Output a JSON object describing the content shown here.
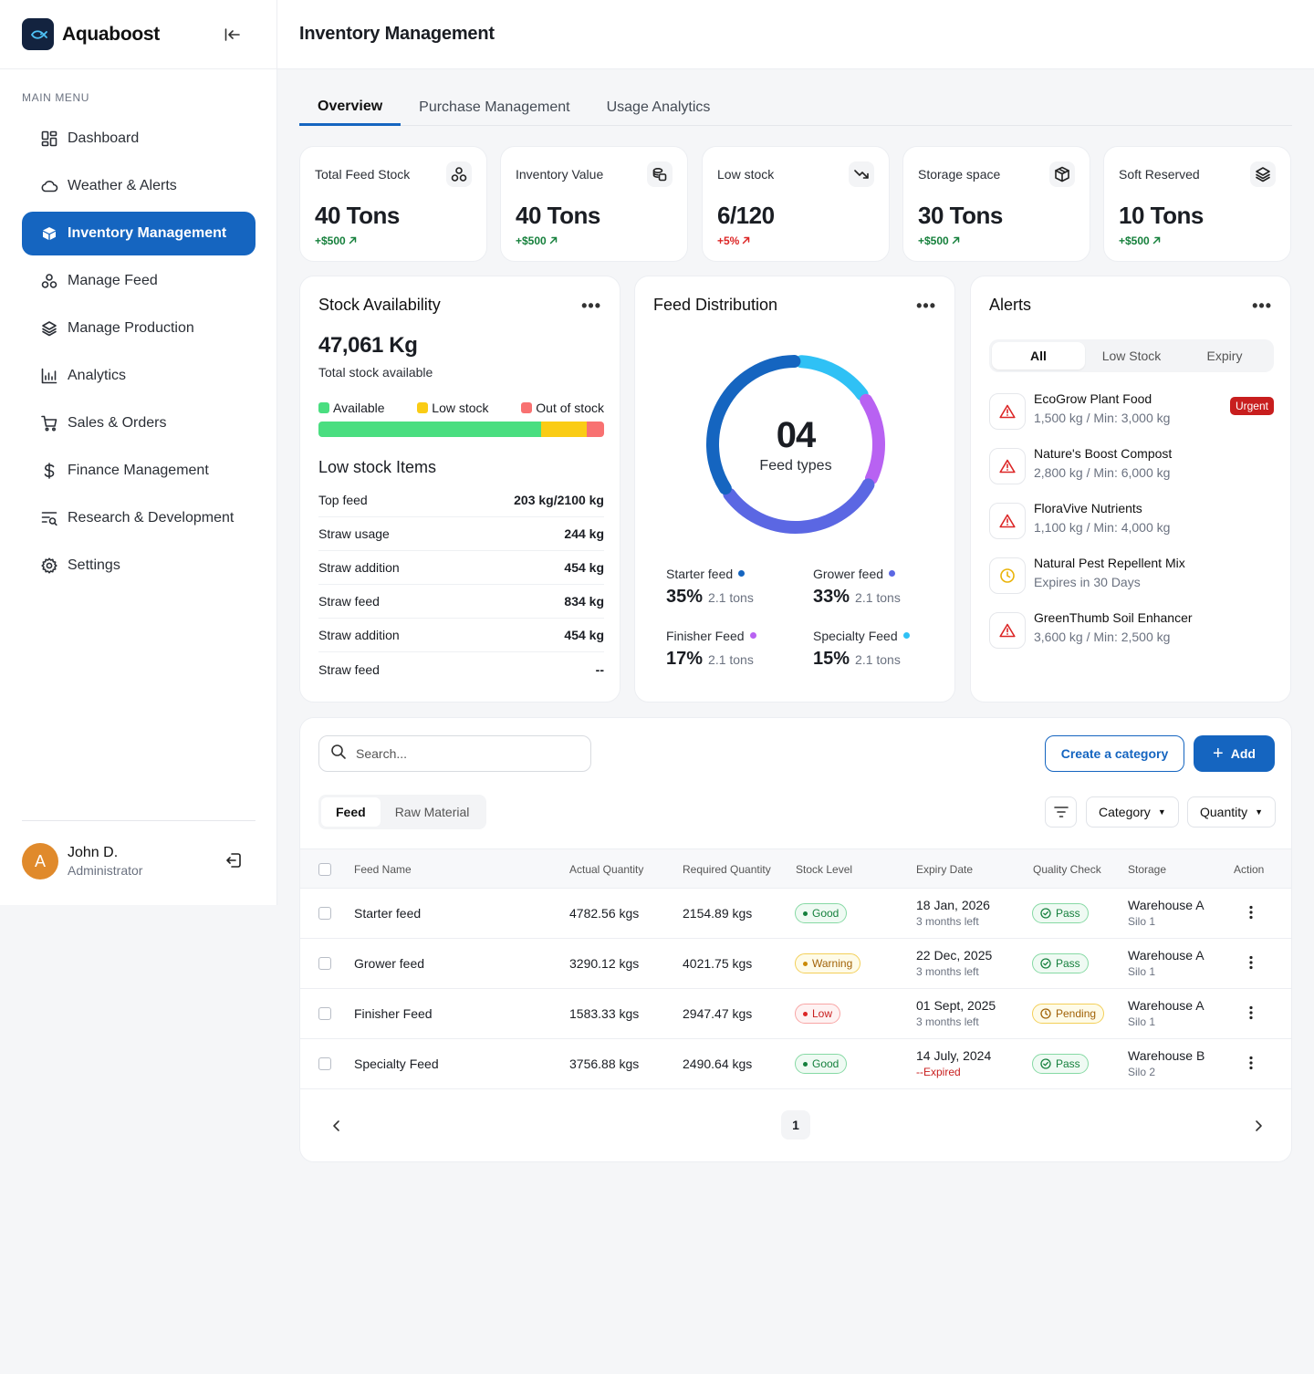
{
  "brand": {
    "name": "Aquaboost"
  },
  "header": {
    "title": "Inventory Management"
  },
  "sidebar": {
    "menu_title": "MAIN MENU",
    "items": [
      {
        "label": "Dashboard",
        "icon": "grid-icon"
      },
      {
        "label": "Weather & Alerts",
        "icon": "cloud-icon"
      },
      {
        "label": "Inventory Management",
        "icon": "box-icon",
        "active": true
      },
      {
        "label": "Manage Feed",
        "icon": "circles-icon"
      },
      {
        "label": "Manage Production",
        "icon": "layers-icon"
      },
      {
        "label": "Analytics",
        "icon": "chart-icon"
      },
      {
        "label": "Sales & Orders",
        "icon": "cart-icon"
      },
      {
        "label": "Finance Management",
        "icon": "dollar-icon"
      },
      {
        "label": "Research & Development",
        "icon": "filter-search-icon"
      },
      {
        "label": "Settings",
        "icon": "gear-icon"
      }
    ],
    "user": {
      "initial": "A",
      "name": "John D.",
      "role": "Administrator"
    }
  },
  "tabs": [
    "Overview",
    "Purchase Management",
    "Usage Analytics"
  ],
  "kpis": [
    {
      "label": "Total Feed Stock",
      "value": "40 Tons",
      "change": "+$500",
      "trend": "up",
      "icon": "circles-icon"
    },
    {
      "label": "Inventory Value",
      "value": "40 Tons",
      "change": "+$500",
      "trend": "up",
      "icon": "coins-icon"
    },
    {
      "label": "Low stock",
      "value": "6/120",
      "change": "+5%",
      "trend": "down",
      "icon": "trend-down-icon"
    },
    {
      "label": "Storage space",
      "value": "30 Tons",
      "change": "+$500",
      "trend": "up",
      "icon": "package-icon"
    },
    {
      "label": "Soft Reserved",
      "value": "10 Tons",
      "change": "+$500",
      "trend": "up",
      "icon": "layers-icon"
    }
  ],
  "stock": {
    "title": "Stock Availability",
    "total": "47,061 Kg",
    "total_label": "Total stock available",
    "legend": [
      "Available",
      "Low stock",
      "Out of stock"
    ],
    "colors": [
      "#4ade80",
      "#facc15",
      "#f87171"
    ],
    "shares": [
      0.78,
      0.16,
      0.06
    ],
    "low_title": "Low stock Items",
    "low_items": [
      {
        "name": "Top feed",
        "value": "203 kg/2100 kg"
      },
      {
        "name": "Straw usage",
        "value": "244 kg"
      },
      {
        "name": "Straw addition",
        "value": "454 kg"
      },
      {
        "name": "Straw feed",
        "value": "834 kg"
      },
      {
        "name": "Straw addition",
        "value": "454 kg"
      },
      {
        "name": "Straw feed",
        "value": "--"
      }
    ]
  },
  "distribution": {
    "title": "Feed Distribution",
    "center_number": "04",
    "center_label": "Feed types",
    "items": [
      {
        "name": "Starter feed",
        "pct": "35%",
        "tons": "2.1 tons",
        "color": "#1565c0",
        "value": 35
      },
      {
        "name": "Grower feed",
        "pct": "33%",
        "tons": "2.1 tons",
        "color": "#5b67e3",
        "value": 33
      },
      {
        "name": "Finisher Feed",
        "pct": "17%",
        "tons": "2.1 tons",
        "color": "#b862f2",
        "value": 17
      },
      {
        "name": "Specialty Feed",
        "pct": "15%",
        "tons": "2.1 tons",
        "color": "#2fc1f5",
        "value": 15
      }
    ]
  },
  "alerts": {
    "title": "Alerts",
    "filters": [
      "All",
      "Low Stock",
      "Expiry"
    ],
    "items": [
      {
        "name": "EcoGrow Plant Food",
        "detail": "1,500 kg / Min: 3,000 kg",
        "type": "warning",
        "badge": "Urgent"
      },
      {
        "name": "Nature's Boost Compost",
        "detail": "2,800 kg / Min: 6,000 kg",
        "type": "warning"
      },
      {
        "name": "FloraVive Nutrients",
        "detail": "1,100 kg / Min: 4,000 kg",
        "type": "warning"
      },
      {
        "name": "Natural Pest Repellent Mix",
        "detail": "Expires in 30 Days",
        "type": "clock"
      },
      {
        "name": "GreenThumb Soil Enhancer",
        "detail": "3,600 kg / Min: 2,500 kg",
        "type": "warning"
      }
    ]
  },
  "table": {
    "search_placeholder": "Search...",
    "create_label": "Create a category",
    "add_label": "Add",
    "subtabs": [
      "Feed",
      "Raw Material"
    ],
    "category_label": "Category",
    "quantity_label": "Quantity",
    "columns": [
      "Feed Name",
      "Actual Quantity",
      "Required Quantity",
      "Stock Level",
      "Expiry Date",
      "Quality Check",
      "Storage",
      "Action"
    ],
    "rows": [
      {
        "name": "Starter feed",
        "actual": "4782.56 kgs",
        "required": "2154.89 kgs",
        "level": "Good",
        "level_kind": "good",
        "expiry": "18 Jan, 2026",
        "expiry_sub": "3 months left",
        "expired": false,
        "qc": "Pass",
        "qc_kind": "pass",
        "storage": "Warehouse A",
        "storage_sub": "Silo 1"
      },
      {
        "name": "Grower feed",
        "actual": "3290.12 kgs",
        "required": "4021.75 kgs",
        "level": "Warning",
        "level_kind": "warn",
        "expiry": "22 Dec, 2025",
        "expiry_sub": "3 months left",
        "expired": false,
        "qc": "Pass",
        "qc_kind": "pass",
        "storage": "Warehouse A",
        "storage_sub": "Silo 1"
      },
      {
        "name": "Finisher Feed",
        "actual": "1583.33 kgs",
        "required": "2947.47 kgs",
        "level": "Low",
        "level_kind": "low",
        "expiry": "01 Sept, 2025",
        "expiry_sub": "3 months left",
        "expired": false,
        "qc": "Pending",
        "qc_kind": "pend",
        "storage": "Warehouse A",
        "storage_sub": "Silo 1"
      },
      {
        "name": "Specialty Feed",
        "actual": "3756.88 kgs",
        "required": "2490.64 kgs",
        "level": "Good",
        "level_kind": "good",
        "expiry": "14 July, 2024",
        "expiry_sub": "--Expired",
        "expired": true,
        "qc": "Pass",
        "qc_kind": "pass",
        "storage": "Warehouse B",
        "storage_sub": "Silo 2"
      }
    ],
    "page": "1"
  }
}
